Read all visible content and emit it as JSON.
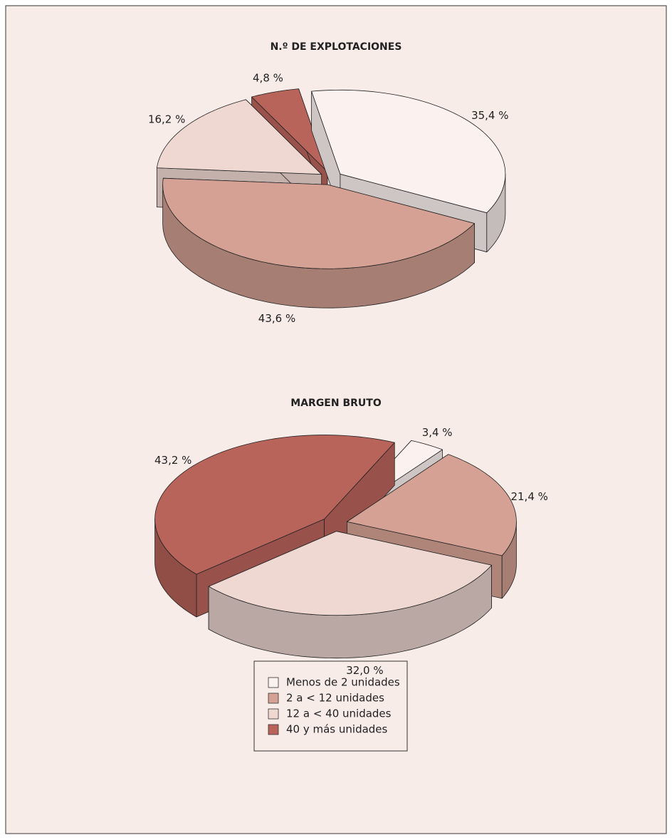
{
  "chart_data": [
    {
      "type": "pie3d",
      "title": "N.º DE EXPLOTACIONES",
      "values": [
        35.4,
        43.6,
        16.2,
        4.8
      ],
      "value_labels": [
        "35,4 %",
        "43,6 %",
        "16,2 %",
        "4,8 %"
      ]
    },
    {
      "type": "pie3d",
      "title": "MARGEN BRUTO",
      "values": [
        3.4,
        21.4,
        32.0,
        43.2
      ],
      "value_labels": [
        "3,4 %",
        "21,4 %",
        "32,0 %",
        "43,2 %"
      ]
    }
  ],
  "legend": {
    "categories": [
      "Menos de 2 unidades",
      "2 a < 12 unidades",
      "12 a < 40 unidades",
      "40 y más unidades"
    ],
    "colors": [
      "#fbf1ef",
      "#d5a194",
      "#efd8d2",
      "#b9645b"
    ]
  }
}
